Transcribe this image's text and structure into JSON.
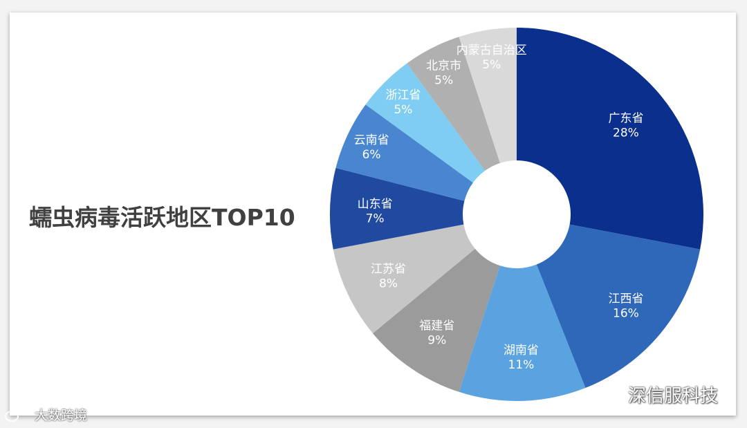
{
  "chart_data": {
    "type": "pie",
    "donut": true,
    "title": "蠕虫病毒活跃地区TOP10",
    "slices": [
      {
        "label": "广东省",
        "value": 28,
        "display": "28%",
        "color": "#0a2f8c"
      },
      {
        "label": "江西省",
        "value": 16,
        "display": "16%",
        "color": "#2f68b8"
      },
      {
        "label": "湖南省",
        "value": 11,
        "display": "11%",
        "color": "#5aa3e0"
      },
      {
        "label": "福建省",
        "value": 9,
        "display": "9%",
        "color": "#9b9b9b"
      },
      {
        "label": "江苏省",
        "value": 8,
        "display": "8%",
        "color": "#c6c6c6"
      },
      {
        "label": "山东省",
        "value": 7,
        "display": "7%",
        "color": "#1f4aa0"
      },
      {
        "label": "云南省",
        "value": 6,
        "display": "6%",
        "color": "#4a86cf"
      },
      {
        "label": "浙江省",
        "value": 5,
        "display": "5%",
        "color": "#7fcdf2"
      },
      {
        "label": "北京市",
        "value": 5,
        "display": "5%",
        "color": "#b0b0b0"
      },
      {
        "label": "内蒙古自治区",
        "value": 5,
        "display": "5%",
        "color": "#d9d9d9"
      }
    ],
    "start": "12 o'clock",
    "direction": "clockwise",
    "legend": "none"
  },
  "watermarks": {
    "right": "深信服科技",
    "left": "大数跨境"
  }
}
